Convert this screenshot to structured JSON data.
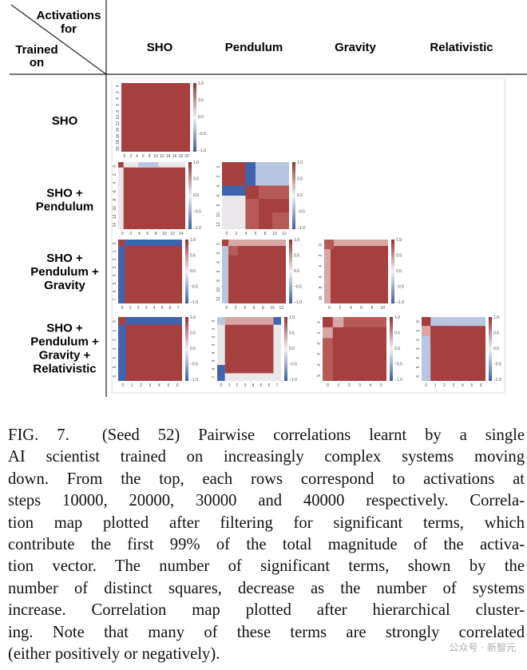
{
  "header": {
    "corner_top": [
      "Activations",
      "for"
    ],
    "corner_bottom": [
      "Trained",
      "on"
    ],
    "columns": [
      "SHO",
      "Pendulum",
      "Gravity",
      "Relativistic"
    ]
  },
  "colorbar_ticks": [
    "1.0",
    "0.5",
    "0.0",
    "−0.5",
    "−1.0"
  ],
  "rows": [
    {
      "label": [
        "SHO"
      ],
      "panels": [
        {
          "ticks": [
            "0",
            "2",
            "4",
            "6",
            "8",
            "10",
            "12",
            "14",
            "16",
            "18",
            "20"
          ]
        }
      ]
    },
    {
      "label": [
        "SHO +",
        "Pendulum"
      ],
      "panels": [
        {
          "ticks": [
            "0",
            "2",
            "4",
            "6",
            "8",
            "10",
            "12",
            "14"
          ]
        },
        {
          "ticks": [
            "0",
            "2",
            "4",
            "6",
            "8",
            "10",
            "12"
          ]
        }
      ]
    },
    {
      "label": [
        "SHO +",
        "Pendulum +",
        "Gravity"
      ],
      "panels": [
        {
          "ticks": [
            "0",
            "1",
            "2",
            "3",
            "4",
            "5",
            "6",
            "7"
          ]
        },
        {
          "ticks": [
            "0",
            "2",
            "4",
            "6",
            "8",
            "10",
            "12"
          ]
        },
        {
          "ticks": [
            "0",
            "2",
            "4",
            "6",
            "8",
            "10"
          ]
        }
      ]
    },
    {
      "label": [
        "SHO +",
        "Pendulum +",
        "Gravity +",
        "Relativistic"
      ],
      "panels": [
        {
          "ticks": [
            "0",
            "1",
            "2",
            "3",
            "4",
            "5",
            "6"
          ]
        },
        {
          "ticks": [
            "0",
            "1",
            "2",
            "3",
            "4",
            "5",
            "6",
            "7"
          ]
        },
        {
          "ticks": [
            "0",
            "1",
            "2",
            "3",
            "4",
            "5"
          ]
        },
        {
          "ticks": [
            "0",
            "1",
            "2",
            "3",
            "4",
            "5",
            "6"
          ]
        }
      ]
    }
  ],
  "caption": [
    "FIG. 7.  (Seed 52) Pairwise correlations learnt by a single",
    "AI scientist trained on increasingly complex systems moving",
    "down. From the top, each rows correspond to activations at",
    "steps 10000, 20000, 30000 and 40000 respectively. Correla-",
    "tion map plotted after filtering for significant terms, which",
    "contribute the first 99% of the total magnitude of the activa-",
    "tion vector. The number of significant terms, shown by the",
    "number of distinct squares, decrease as the number of systems",
    "increase. Correlation map plotted after hierarchical cluster-",
    "ing. Note that many of these terms are strongly correlated",
    "(either positively or negatively)."
  ],
  "watermark": "公众号 · 新智元"
}
